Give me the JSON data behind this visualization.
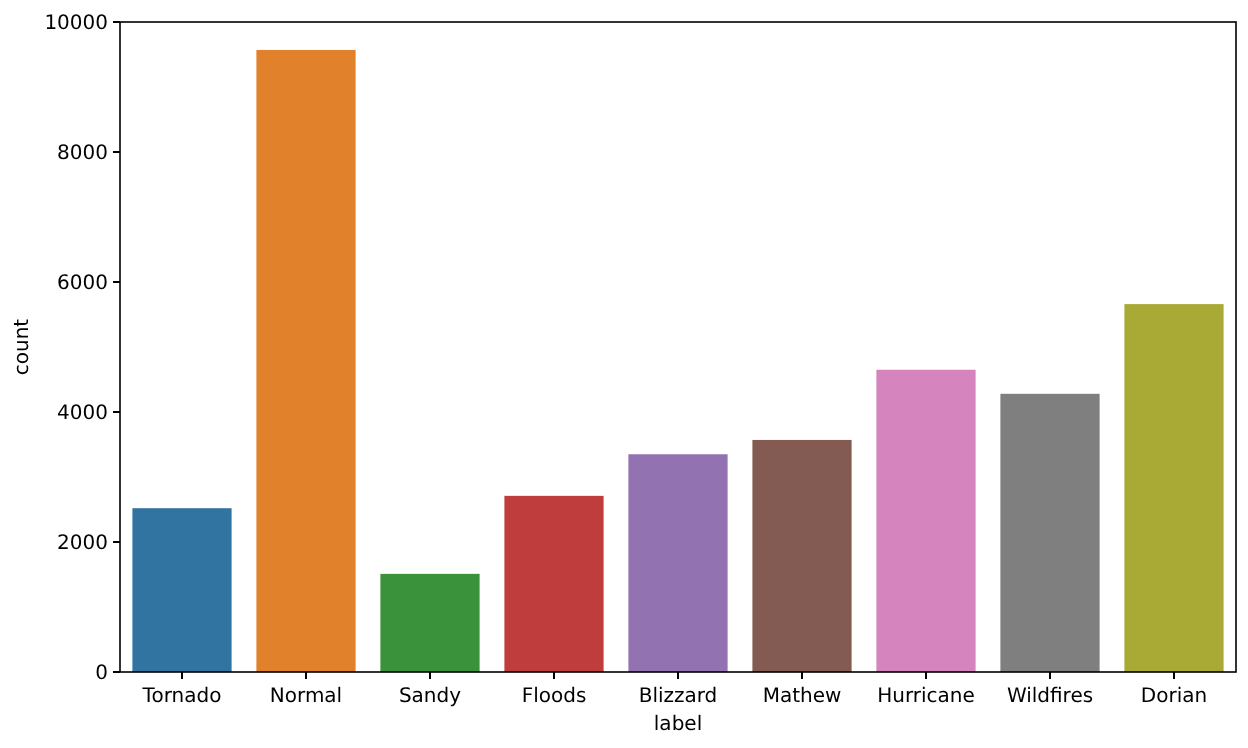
{
  "chart_data": {
    "type": "bar",
    "xlabel": "label",
    "ylabel": "count",
    "categories": [
      "Tornado",
      "Normal",
      "Sandy",
      "Floods",
      "Blizzard",
      "Mathew",
      "Hurricane",
      "Wildfires",
      "Dorian"
    ],
    "values": [
      2520,
      9570,
      1510,
      2710,
      3350,
      3570,
      4650,
      4280,
      5660
    ],
    "colors": [
      "#3274a1",
      "#e1812c",
      "#3a923a",
      "#c03d3e",
      "#9372b2",
      "#845b53",
      "#d684bd",
      "#7f7f7f",
      "#a9aa35"
    ],
    "ylim": [
      0,
      10000
    ],
    "yticks": [
      0,
      2000,
      4000,
      6000,
      8000,
      10000
    ],
    "grid": false
  }
}
